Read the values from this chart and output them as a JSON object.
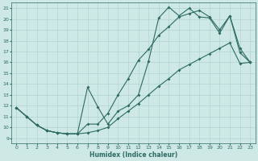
{
  "xlabel": "Humidex (Indice chaleur)",
  "ylabel": "",
  "background_color": "#cde8e5",
  "grid_color": "#aacfcc",
  "line_color": "#2d6b63",
  "xlim": [
    -0.5,
    23.5
  ],
  "ylim": [
    8.5,
    21.5
  ],
  "xticks": [
    0,
    1,
    2,
    3,
    4,
    5,
    6,
    7,
    8,
    9,
    10,
    11,
    12,
    13,
    14,
    15,
    16,
    17,
    18,
    19,
    20,
    21,
    22,
    23
  ],
  "yticks": [
    9,
    10,
    11,
    12,
    13,
    14,
    15,
    16,
    17,
    18,
    19,
    20,
    21
  ],
  "line1_x": [
    0,
    1,
    2,
    3,
    4,
    5,
    6,
    7,
    8,
    9,
    10,
    11,
    12,
    13,
    14,
    15,
    16,
    17,
    18,
    19,
    20,
    21,
    22,
    23
  ],
  "line1_y": [
    11.8,
    11.0,
    10.2,
    9.7,
    9.5,
    9.4,
    9.4,
    13.7,
    11.9,
    10.3,
    11.5,
    12.0,
    13.0,
    16.1,
    20.1,
    21.1,
    20.3,
    21.0,
    20.2,
    20.1,
    18.7,
    20.3,
    16.9,
    16.0
  ],
  "line2_x": [
    0,
    1,
    2,
    3,
    4,
    5,
    6,
    7,
    8,
    9,
    10,
    11,
    12,
    13,
    14,
    15,
    16,
    17,
    18,
    19,
    20,
    21,
    22,
    23
  ],
  "line2_y": [
    11.8,
    11.0,
    10.2,
    9.7,
    9.5,
    9.4,
    9.4,
    10.3,
    10.3,
    11.3,
    13.0,
    14.5,
    16.2,
    17.2,
    18.5,
    19.3,
    20.2,
    20.5,
    20.8,
    20.2,
    19.0,
    20.3,
    17.3,
    16.0
  ],
  "line3_x": [
    0,
    1,
    2,
    3,
    4,
    5,
    6,
    7,
    8,
    9,
    10,
    11,
    12,
    13,
    14,
    15,
    16,
    17,
    18,
    19,
    20,
    21,
    22,
    23
  ],
  "line3_y": [
    11.8,
    11.0,
    10.2,
    9.7,
    9.5,
    9.4,
    9.4,
    9.5,
    9.7,
    10.0,
    10.8,
    11.5,
    12.2,
    13.0,
    13.8,
    14.5,
    15.3,
    15.8,
    16.3,
    16.8,
    17.3,
    17.8,
    15.9,
    16.0
  ],
  "markersize": 2.0,
  "linewidth": 0.8,
  "tick_fontsize": 4.5,
  "xlabel_fontsize": 5.5
}
